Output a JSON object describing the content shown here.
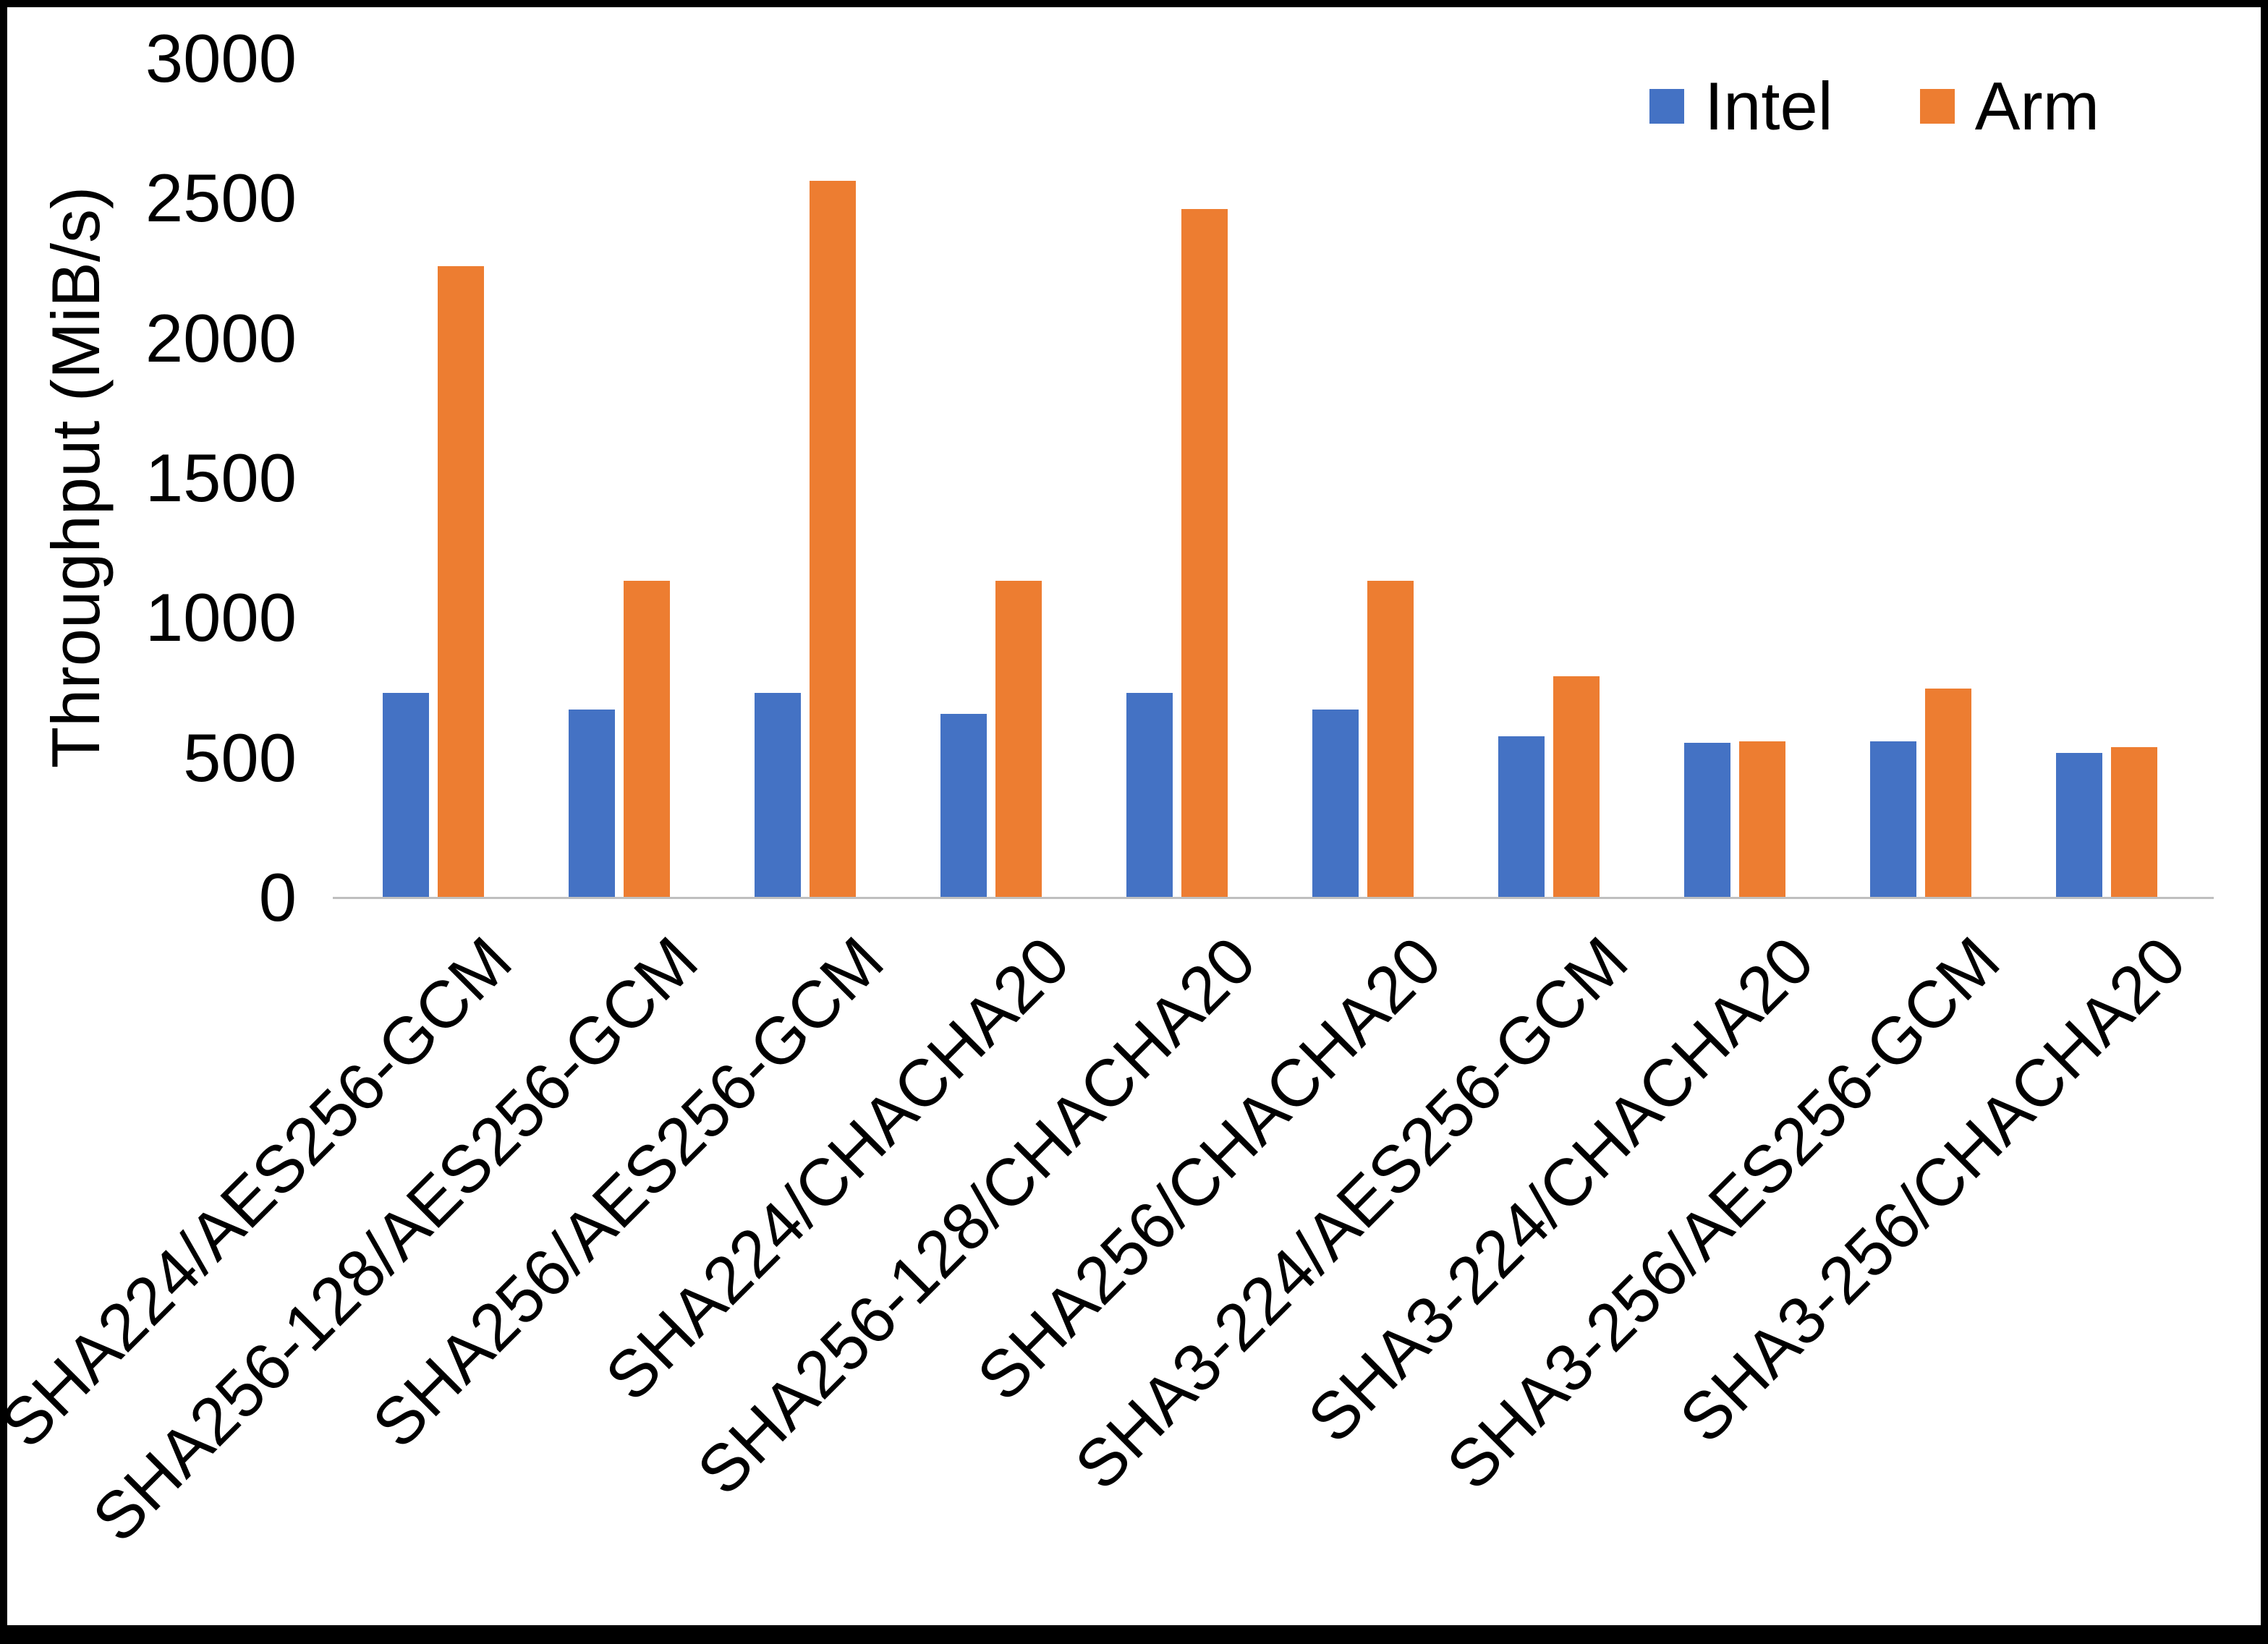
{
  "chart_data": {
    "type": "bar",
    "title": "",
    "ylabel": "Throughput (MiB/s)",
    "xlabel": "",
    "ylim": [
      0,
      3000
    ],
    "ytick_step": 500,
    "yticks": [
      "0",
      "500",
      "1000",
      "1500",
      "2000",
      "2500",
      "3000"
    ],
    "grid": false,
    "legend_position": "top-right",
    "categories": [
      "SHA224/AES256-GCM",
      "SHA256-128/AES256-GCM",
      "SHA256/AES256-GCM",
      "SHA224/CHACHA20",
      "SHA256-128/CHACHA20",
      "SHA256/CHACHA20",
      "SHA3-224/AES256-GCM",
      "SHA3-224/CHACHA20",
      "SHA3-256/AES256-GCM",
      "SHA3-256/CHACHA20"
    ],
    "series": [
      {
        "name": "Intel",
        "color": "#4472C4",
        "values": [
          730,
          670,
          730,
          655,
          730,
          670,
          575,
          550,
          555,
          515
        ]
      },
      {
        "name": "Arm",
        "color": "#ED7D31",
        "values": [
          2255,
          1130,
          2560,
          1130,
          2460,
          1130,
          790,
          555,
          745,
          535
        ]
      }
    ]
  }
}
